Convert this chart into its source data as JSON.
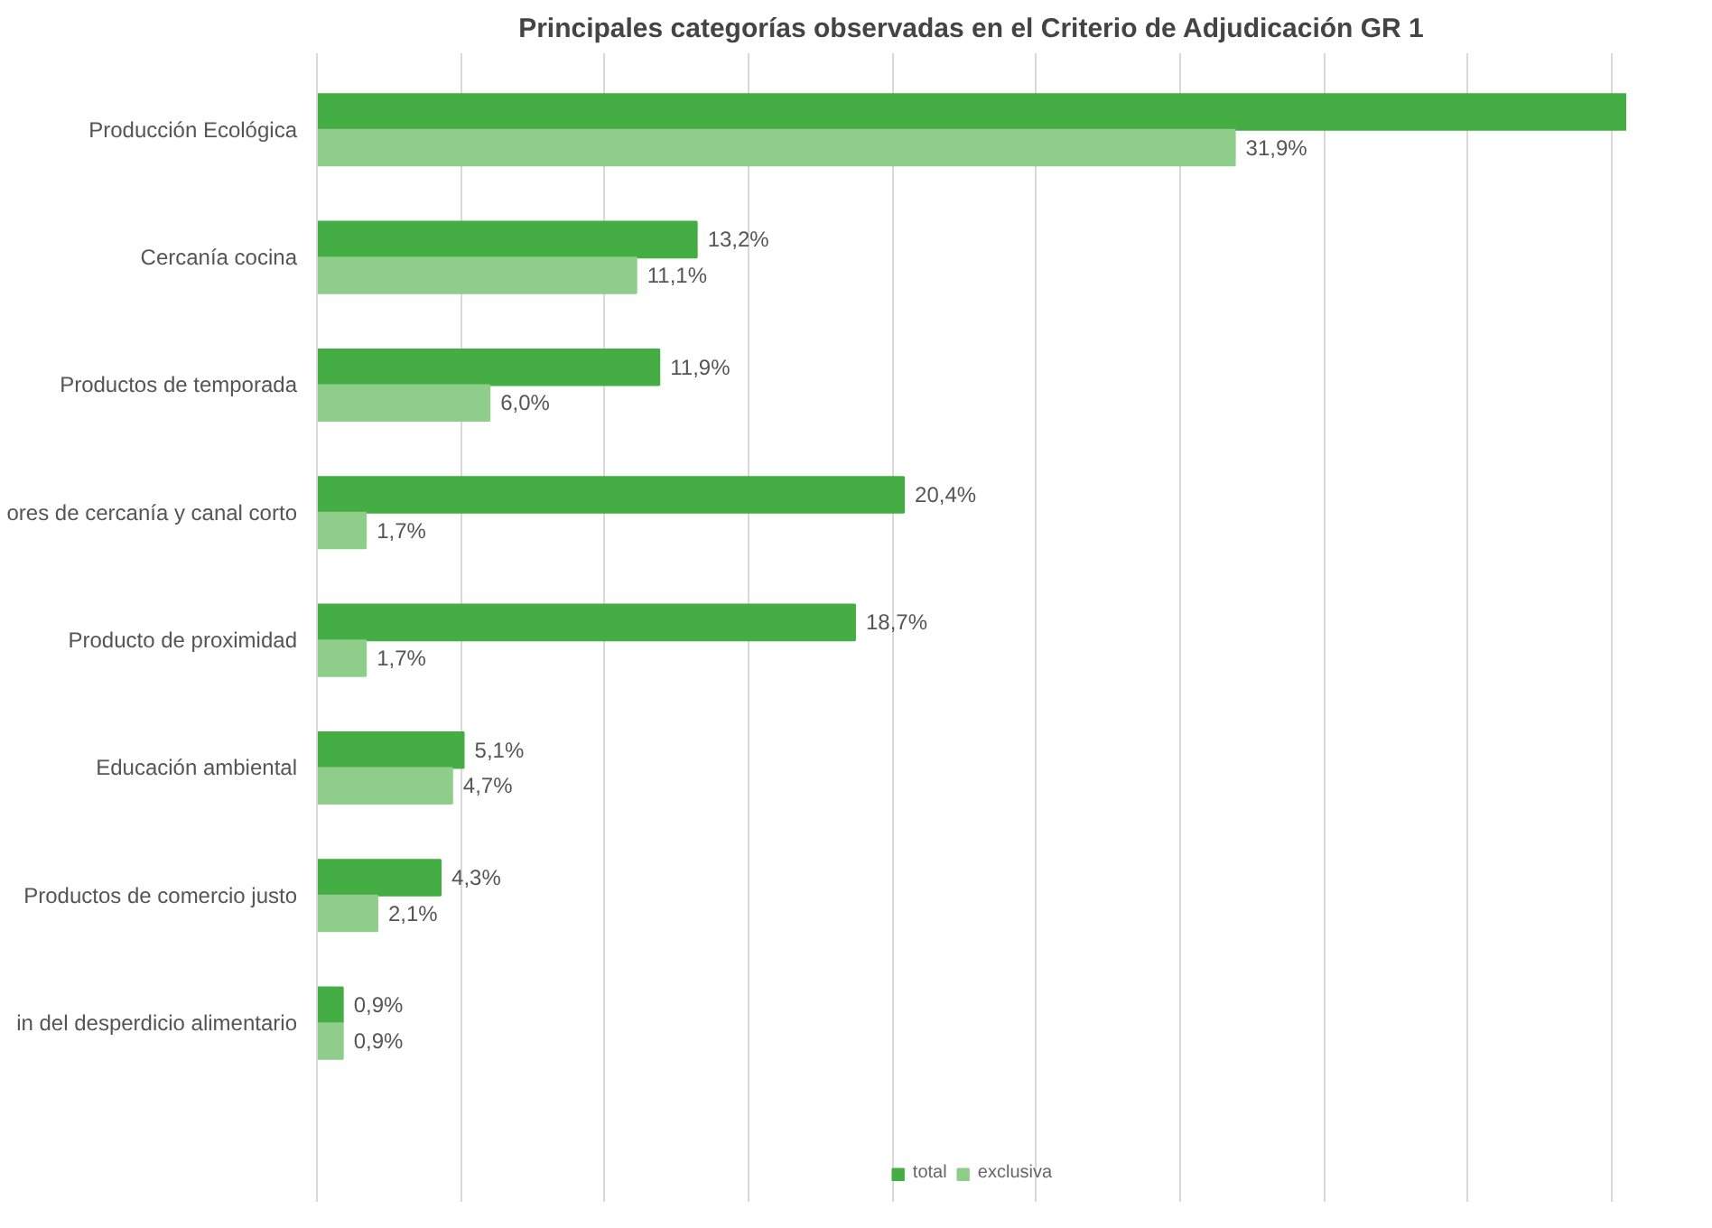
{
  "chart_data": {
    "type": "bar",
    "orientation": "horizontal",
    "title": "Principales categorías observadas en el Criterio de Adjudicación GR 1",
    "categories": [
      "Producción Ecológica",
      "Cercanía cocina",
      "Productos de temporada",
      "ores de cercanía y canal corto",
      "Producto de proximidad",
      "Educación ambiental",
      "Productos de comercio justo",
      "in del desperdicio alimentario"
    ],
    "series": [
      {
        "name": "total",
        "color": "#44ad44",
        "values": [
          45.5,
          13.2,
          11.9,
          20.4,
          18.7,
          5.1,
          4.3,
          0.9
        ],
        "value_labels": [
          null,
          "13,2%",
          "11,9%",
          "20,4%",
          "18,7%",
          "5,1%",
          "4,3%",
          "0,9%"
        ]
      },
      {
        "name": "exclusiva",
        "color": "#8fce8a",
        "values": [
          31.9,
          11.1,
          6.0,
          1.7,
          1.7,
          4.7,
          2.1,
          0.9
        ],
        "value_labels": [
          "31,9%",
          "11,1%",
          "6,0%",
          "1,7%",
          "1,7%",
          "4,7%",
          "2,1%",
          "0,9%"
        ]
      }
    ],
    "xlim": [
      0,
      45.5
    ],
    "xticks": [
      {
        "value": 5,
        "label": null
      },
      {
        "value": 10,
        "label": null
      },
      {
        "value": 15,
        "label": null
      },
      {
        "value": 20,
        "label": null
      },
      {
        "value": 25,
        "label": null
      },
      {
        "value": 30,
        "label": null
      },
      {
        "value": 35,
        "label": null
      },
      {
        "value": 40,
        "label": null
      },
      {
        "value": 45,
        "label": null
      }
    ],
    "grid": "x",
    "legend": "bottom",
    "tick_labels": "y"
  }
}
